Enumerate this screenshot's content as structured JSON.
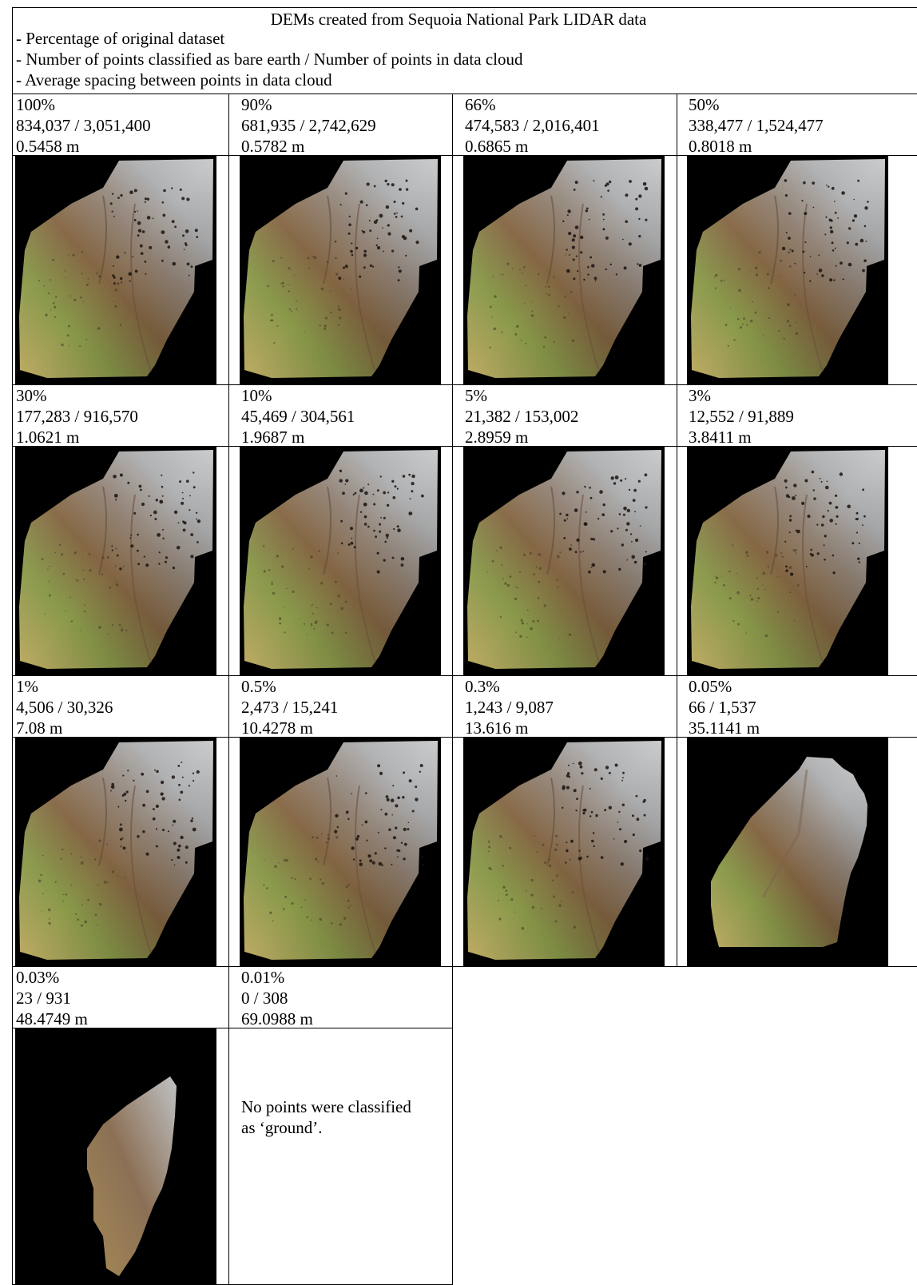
{
  "header": {
    "title": "DEMs created from Sequoia National Park LIDAR data",
    "lines": [
      "- Percentage of original dataset",
      "- Number of points classified as bare earth / Number of points in data cloud",
      "- Average spacing between points in data cloud"
    ]
  },
  "cells": [
    {
      "percent": "100%",
      "points": "834,037 / 3,051,400",
      "spacing": "0.5458 m",
      "image": "dem-full"
    },
    {
      "percent": "90%",
      "points": "681,935 / 2,742,629",
      "spacing": "0.5782 m",
      "image": "dem-full"
    },
    {
      "percent": "66%",
      "points": "474,583 / 2,016,401",
      "spacing": "0.6865 m",
      "image": "dem-full"
    },
    {
      "percent": "50%",
      "points": "338,477 / 1,524,477",
      "spacing": "0.8018 m",
      "image": "dem-full"
    },
    {
      "percent": "30%",
      "points": "177,283 / 916,570",
      "spacing": "1.0621 m",
      "image": "dem-full"
    },
    {
      "percent": "10%",
      "points": "45,469 / 304,561",
      "spacing": "1.9687 m",
      "image": "dem-full"
    },
    {
      "percent": "5%",
      "points": "21,382 / 153,002",
      "spacing": "2.8959 m",
      "image": "dem-full"
    },
    {
      "percent": "3%",
      "points": "12,552 / 91,889",
      "spacing": "3.8411 m",
      "image": "dem-full"
    },
    {
      "percent": "1%",
      "points": "4,506 / 30,326",
      "spacing": "7.08 m",
      "image": "dem-full"
    },
    {
      "percent": "0.5%",
      "points": "2,473 / 15,241",
      "spacing": "10.4278 m",
      "image": "dem-full"
    },
    {
      "percent": "0.3%",
      "points": "1,243 / 9,087",
      "spacing": "13.616 m",
      "image": "dem-full"
    },
    {
      "percent": "0.05%",
      "points": "66 / 1,537",
      "spacing": "35.1141 m",
      "image": "dem-sparse"
    },
    {
      "percent": "0.03%",
      "points": "23 / 931",
      "spacing": "48.4749 m",
      "image": "dem-sliver"
    },
    {
      "percent": "0.01%",
      "points": "0 / 308",
      "spacing": "69.0988 m",
      "image": "none",
      "note": "No points were classified as ‘ground’."
    }
  ]
}
